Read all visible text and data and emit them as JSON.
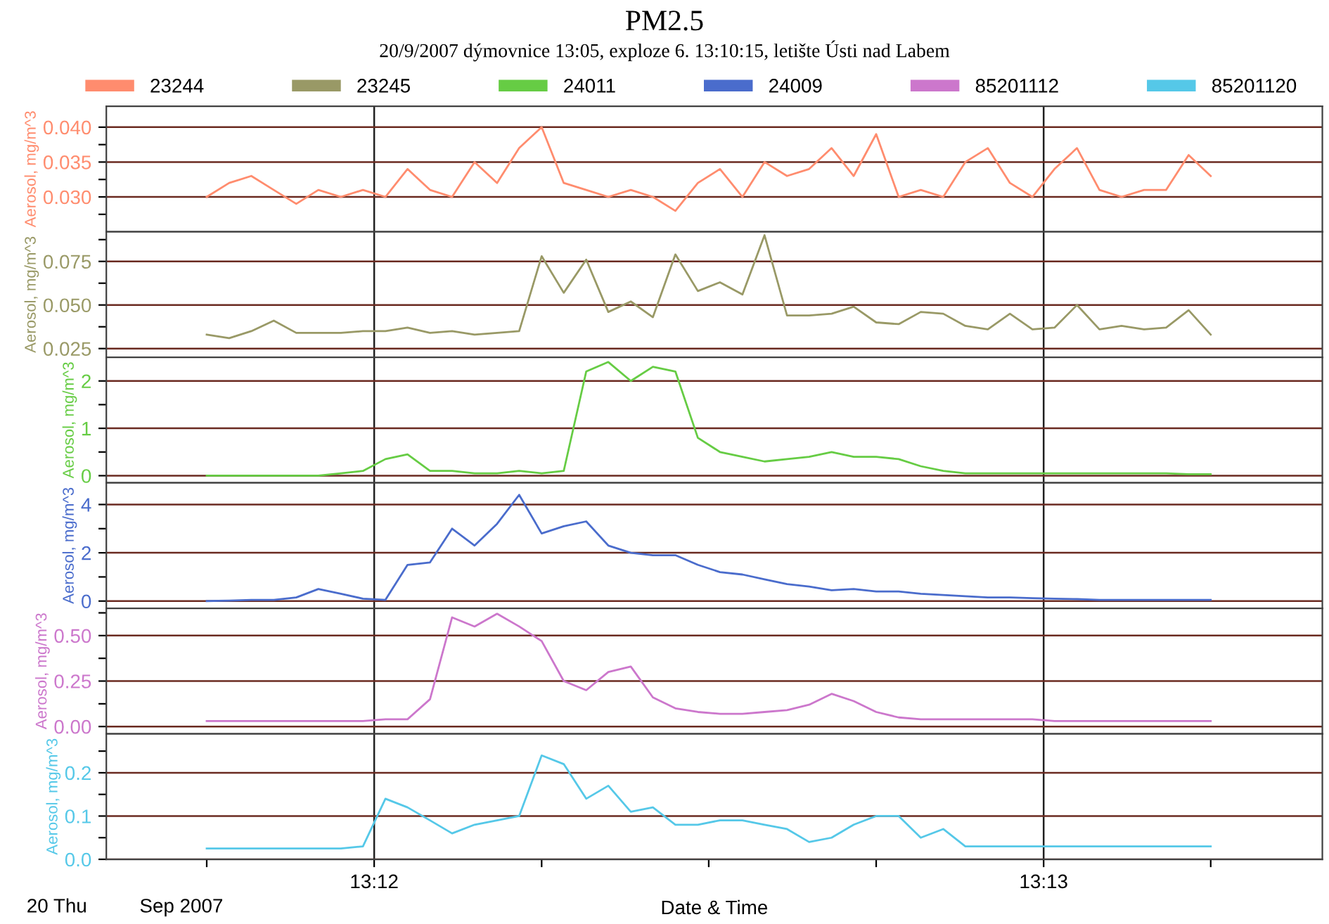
{
  "chart_data": [
    {
      "type": "line",
      "title": "PM2.5",
      "subtitle": "20/9/2007 dýmovnice 13:05, exploze 6. 13:10:15, letište Ústi nad Labem",
      "ylabel": "Aerosol, mg/m^3",
      "legend": "top",
      "grid": true,
      "tick_labels": "y",
      "x": [
        13.19583,
        13.19639,
        13.19694,
        13.1975,
        13.19806,
        13.19861,
        13.19917,
        13.19972,
        13.20028,
        13.20083,
        13.20139,
        13.20194,
        13.2025,
        13.20306,
        13.20361,
        13.20417,
        13.20472,
        13.20528,
        13.20583,
        13.20639,
        13.20694,
        13.2075,
        13.20806,
        13.20861,
        13.20917,
        13.20972,
        13.21028,
        13.21083,
        13.21139,
        13.21194,
        13.2125,
        13.21306,
        13.21361,
        13.21417,
        13.21472,
        13.21528,
        13.21583,
        13.21639,
        13.21694,
        13.2175,
        13.21806,
        13.21861,
        13.21917,
        13.21972,
        13.22028,
        13.22083
      ],
      "xlim": [
        13.19333,
        13.22361
      ],
      "ylim": [
        0.025,
        0.043
      ],
      "yticks": [
        {
          "value": 0.0275,
          "label": null
        },
        {
          "value": 0.03,
          "label": "0.030"
        },
        {
          "value": 0.0325,
          "label": null
        },
        {
          "value": 0.035,
          "label": "0.035"
        },
        {
          "value": 0.0375,
          "label": null
        },
        {
          "value": 0.04,
          "label": "0.040"
        }
      ],
      "series": [
        {
          "name": "23244",
          "color": "#ff8c6e",
          "values": [
            0.03,
            0.032,
            0.033,
            0.031,
            0.029,
            0.031,
            0.03,
            0.031,
            0.03,
            0.034,
            0.031,
            0.03,
            0.035,
            0.032,
            0.037,
            0.04,
            0.032,
            0.031,
            0.03,
            0.031,
            0.03,
            0.028,
            0.032,
            0.034,
            0.03,
            0.035,
            0.033,
            0.034,
            0.037,
            0.033,
            0.039,
            0.03,
            0.031,
            0.03,
            0.035,
            0.037,
            0.032,
            0.03,
            0.034,
            0.037,
            0.031,
            0.03,
            0.031,
            0.031,
            0.036,
            0.033
          ]
        }
      ]
    },
    {
      "type": "line",
      "ylabel": "Aerosol, mg/m^3",
      "legend": "top",
      "grid": true,
      "tick_labels": "y",
      "x": [
        13.19583,
        13.19639,
        13.19694,
        13.1975,
        13.19806,
        13.19861,
        13.19917,
        13.19972,
        13.20028,
        13.20083,
        13.20139,
        13.20194,
        13.2025,
        13.20306,
        13.20361,
        13.20417,
        13.20472,
        13.20528,
        13.20583,
        13.20639,
        13.20694,
        13.2075,
        13.20806,
        13.20861,
        13.20917,
        13.20972,
        13.21028,
        13.21083,
        13.21139,
        13.21194,
        13.2125,
        13.21306,
        13.21361,
        13.21417,
        13.21472,
        13.21528,
        13.21583,
        13.21639,
        13.21694,
        13.2175,
        13.21806,
        13.21861,
        13.21917,
        13.21972,
        13.22028,
        13.22083
      ],
      "xlim": [
        13.19333,
        13.22361
      ],
      "ylim": [
        0.02,
        0.092
      ],
      "yticks": [
        {
          "value": 0.025,
          "label": "0.025"
        },
        {
          "value": 0.0375,
          "label": null
        },
        {
          "value": 0.05,
          "label": "0.050"
        },
        {
          "value": 0.0625,
          "label": null
        },
        {
          "value": 0.075,
          "label": "0.075"
        },
        {
          "value": 0.0875,
          "label": null
        }
      ],
      "series": [
        {
          "name": "23245",
          "color": "#999966",
          "values": [
            0.033,
            0.031,
            0.035,
            0.041,
            0.034,
            0.034,
            0.034,
            0.035,
            0.035,
            0.037,
            0.034,
            0.035,
            0.033,
            0.034,
            0.035,
            0.078,
            0.057,
            0.076,
            0.046,
            0.052,
            0.043,
            0.079,
            0.058,
            0.063,
            0.056,
            0.09,
            0.044,
            0.044,
            0.045,
            0.049,
            0.04,
            0.039,
            0.046,
            0.045,
            0.038,
            0.036,
            0.045,
            0.036,
            0.037,
            0.05,
            0.036,
            0.038,
            0.036,
            0.037,
            0.047,
            0.033
          ]
        }
      ]
    },
    {
      "type": "line",
      "ylabel": "Aerosol, mg/m^3",
      "legend": "top",
      "grid": true,
      "tick_labels": "y",
      "x": [
        13.19583,
        13.19639,
        13.19694,
        13.1975,
        13.19806,
        13.19861,
        13.19917,
        13.19972,
        13.20028,
        13.20083,
        13.20139,
        13.20194,
        13.2025,
        13.20306,
        13.20361,
        13.20417,
        13.20472,
        13.20528,
        13.20583,
        13.20639,
        13.20694,
        13.2075,
        13.20806,
        13.20861,
        13.20917,
        13.20972,
        13.21028,
        13.21083,
        13.21139,
        13.21194,
        13.2125,
        13.21306,
        13.21361,
        13.21417,
        13.21472,
        13.21528,
        13.21583,
        13.21639,
        13.21694,
        13.2175,
        13.21806,
        13.21861,
        13.21917,
        13.21972,
        13.22028,
        13.22083
      ],
      "xlim": [
        13.19333,
        13.22361
      ],
      "ylim": [
        -0.15,
        2.5
      ],
      "yticks": [
        0,
        {
          "value": 0.5,
          "label": null
        },
        1,
        {
          "value": 1.5,
          "label": null
        },
        2
      ],
      "series": [
        {
          "name": "24011",
          "color": "#66cc44",
          "values": [
            0.0,
            0.0,
            0.0,
            0.0,
            0.0,
            0.0,
            0.05,
            0.1,
            0.35,
            0.45,
            0.1,
            0.1,
            0.05,
            0.05,
            0.1,
            0.05,
            0.1,
            2.2,
            2.4,
            2.0,
            2.3,
            2.2,
            0.8,
            0.5,
            0.4,
            0.3,
            0.35,
            0.4,
            0.5,
            0.4,
            0.4,
            0.35,
            0.2,
            0.1,
            0.05,
            0.05,
            0.05,
            0.05,
            0.05,
            0.05,
            0.05,
            0.05,
            0.05,
            0.05,
            0.03,
            0.03
          ]
        }
      ]
    },
    {
      "type": "line",
      "ylabel": "Aerosol, mg/m^3",
      "legend": "top",
      "grid": true,
      "tick_labels": "y",
      "x": [
        13.19583,
        13.19639,
        13.19694,
        13.1975,
        13.19806,
        13.19861,
        13.19917,
        13.19972,
        13.20028,
        13.20083,
        13.20139,
        13.20194,
        13.2025,
        13.20306,
        13.20361,
        13.20417,
        13.20472,
        13.20528,
        13.20583,
        13.20639,
        13.20694,
        13.2075,
        13.20806,
        13.20861,
        13.20917,
        13.20972,
        13.21028,
        13.21083,
        13.21139,
        13.21194,
        13.2125,
        13.21306,
        13.21361,
        13.21417,
        13.21472,
        13.21528,
        13.21583,
        13.21639,
        13.21694,
        13.2175,
        13.21806,
        13.21861,
        13.21917,
        13.21972,
        13.22028,
        13.22083
      ],
      "xlim": [
        13.19333,
        13.22361
      ],
      "ylim": [
        -0.3,
        4.9
      ],
      "yticks": [
        0,
        {
          "value": 1,
          "label": null
        },
        2,
        {
          "value": 3,
          "label": null
        },
        4
      ],
      "series": [
        {
          "name": "24009",
          "color": "#4a6ccc",
          "values": [
            0.0,
            0.02,
            0.05,
            0.05,
            0.15,
            0.5,
            0.3,
            0.1,
            0.05,
            1.5,
            1.6,
            3.0,
            2.3,
            3.2,
            4.4,
            2.8,
            3.1,
            3.3,
            2.3,
            2.0,
            1.9,
            1.9,
            1.5,
            1.2,
            1.1,
            0.9,
            0.7,
            0.6,
            0.45,
            0.5,
            0.4,
            0.4,
            0.3,
            0.25,
            0.2,
            0.15,
            0.15,
            0.12,
            0.1,
            0.08,
            0.05,
            0.05,
            0.05,
            0.05,
            0.05,
            0.05
          ]
        }
      ]
    },
    {
      "type": "line",
      "ylabel": "Aerosol, mg/m^3",
      "legend": "top",
      "grid": true,
      "tick_labels": "y",
      "x": [
        13.19583,
        13.19639,
        13.19694,
        13.1975,
        13.19806,
        13.19861,
        13.19917,
        13.19972,
        13.20028,
        13.20083,
        13.20139,
        13.20194,
        13.2025,
        13.20306,
        13.20361,
        13.20417,
        13.20472,
        13.20528,
        13.20583,
        13.20639,
        13.20694,
        13.2075,
        13.20806,
        13.20861,
        13.20917,
        13.20972,
        13.21028,
        13.21083,
        13.21139,
        13.21194,
        13.2125,
        13.21306,
        13.21361,
        13.21417,
        13.21472,
        13.21528,
        13.21583,
        13.21639,
        13.21694,
        13.2175,
        13.21806,
        13.21861,
        13.21917,
        13.21972,
        13.22028,
        13.22083
      ],
      "xlim": [
        13.19333,
        13.22361
      ],
      "ylim": [
        -0.04,
        0.65
      ],
      "yticks": [
        {
          "value": 0.0,
          "label": "0.00"
        },
        {
          "value": 0.125,
          "label": null
        },
        {
          "value": 0.25,
          "label": "0.25"
        },
        {
          "value": 0.375,
          "label": null
        },
        {
          "value": 0.5,
          "label": "0.50"
        },
        {
          "value": 0.625,
          "label": null
        }
      ],
      "series": [
        {
          "name": "85201112",
          "color": "#cc77cc",
          "values": [
            0.03,
            0.03,
            0.03,
            0.03,
            0.03,
            0.03,
            0.03,
            0.03,
            0.04,
            0.04,
            0.15,
            0.6,
            0.55,
            0.62,
            0.55,
            0.47,
            0.25,
            0.2,
            0.3,
            0.33,
            0.16,
            0.1,
            0.08,
            0.07,
            0.07,
            0.08,
            0.09,
            0.12,
            0.18,
            0.14,
            0.08,
            0.05,
            0.04,
            0.04,
            0.04,
            0.04,
            0.04,
            0.04,
            0.03,
            0.03,
            0.03,
            0.03,
            0.03,
            0.03,
            0.03,
            0.03
          ]
        }
      ]
    },
    {
      "type": "line",
      "ylabel": "Aerosol, mg/m^3",
      "xlabel": "Date & Time",
      "legend": "top",
      "grid": true,
      "annotations": [
        "20 Thu",
        "Sep 2007"
      ],
      "x": [
        13.19583,
        13.19639,
        13.19694,
        13.1975,
        13.19806,
        13.19861,
        13.19917,
        13.19972,
        13.20028,
        13.20083,
        13.20139,
        13.20194,
        13.2025,
        13.20306,
        13.20361,
        13.20417,
        13.20472,
        13.20528,
        13.20583,
        13.20639,
        13.20694,
        13.2075,
        13.20806,
        13.20861,
        13.20917,
        13.20972,
        13.21028,
        13.21083,
        13.21139,
        13.21194,
        13.2125,
        13.21306,
        13.21361,
        13.21417,
        13.21472,
        13.21528,
        13.21583,
        13.21639,
        13.21694,
        13.2175,
        13.21806,
        13.21861,
        13.21917,
        13.21972,
        13.22028,
        13.22083
      ],
      "xlim": [
        13.19333,
        13.22361
      ],
      "xticks": [
        {
          "value": 13.19583,
          "label": null
        },
        {
          "value": 13.2,
          "label": "13:12"
        },
        {
          "value": 13.20417,
          "label": null
        },
        {
          "value": 13.20833,
          "label": null
        },
        {
          "value": 13.2125,
          "label": null
        },
        {
          "value": 13.21667,
          "label": "13:13"
        },
        {
          "value": 13.22083,
          "label": null
        }
      ],
      "ylim": [
        0.0,
        0.29
      ],
      "yticks": [
        {
          "value": 0.0,
          "label": "0.0"
        },
        {
          "value": 0.05,
          "label": null
        },
        {
          "value": 0.1,
          "label": "0.1"
        },
        {
          "value": 0.15,
          "label": null
        },
        {
          "value": 0.2,
          "label": "0.2"
        },
        {
          "value": 0.25,
          "label": null
        }
      ],
      "series": [
        {
          "name": "85201120",
          "color": "#55c8e8",
          "values": [
            0.025,
            0.025,
            0.025,
            0.025,
            0.025,
            0.025,
            0.025,
            0.03,
            0.14,
            0.12,
            0.09,
            0.06,
            0.08,
            0.09,
            0.1,
            0.24,
            0.22,
            0.14,
            0.17,
            0.11,
            0.12,
            0.08,
            0.08,
            0.09,
            0.09,
            0.08,
            0.07,
            0.04,
            0.05,
            0.08,
            0.1,
            0.1,
            0.05,
            0.07,
            0.03,
            0.03,
            0.03,
            0.03,
            0.03,
            0.03,
            0.03,
            0.03,
            0.03,
            0.03,
            0.03,
            0.03
          ]
        }
      ]
    }
  ]
}
